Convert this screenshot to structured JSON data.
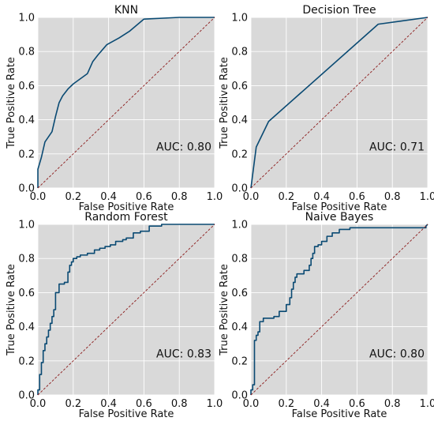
{
  "chart_data": [
    {
      "type": "line",
      "title": "KNN",
      "xlabel": "False Positive Rate",
      "ylabel": "True Positive Rate",
      "xlim": [
        0,
        1
      ],
      "ylim": [
        0,
        1
      ],
      "xticks": [
        "0.0",
        "0.2",
        "0.4",
        "0.6",
        "0.8",
        "1.0"
      ],
      "yticks": [
        "0.0",
        "0.2",
        "0.4",
        "0.6",
        "0.8",
        "1.0"
      ],
      "grid": true,
      "annotation": "AUC: 0.80",
      "series": [
        {
          "role": "roc",
          "color": "#0a4a73",
          "x": [
            0,
            0,
            0.02,
            0.04,
            0.06,
            0.06,
            0.08,
            0.1,
            0.12,
            0.14,
            0.17,
            0.2,
            0.24,
            0.28,
            0.31,
            0.34,
            0.39,
            0.46,
            0.52,
            0.6,
            0.8,
            1.0
          ],
          "y": [
            0,
            0.11,
            0.18,
            0.27,
            0.3,
            0.3,
            0.33,
            0.42,
            0.5,
            0.54,
            0.58,
            0.61,
            0.64,
            0.67,
            0.74,
            0.78,
            0.84,
            0.88,
            0.92,
            0.99,
            1.0,
            1.0
          ]
        },
        {
          "role": "chance",
          "color": "#8b1a1a",
          "dashed": true,
          "x": [
            0,
            1
          ],
          "y": [
            0,
            1
          ]
        }
      ]
    },
    {
      "type": "line",
      "title": "Decision Tree",
      "xlabel": "False Positive Rate",
      "ylabel": "True Positive Rate",
      "xlim": [
        0,
        1
      ],
      "ylim": [
        0,
        1
      ],
      "xticks": [
        "0.0",
        "0.2",
        "0.4",
        "0.6",
        "0.8",
        "1.0"
      ],
      "yticks": [
        "0.0",
        "0.2",
        "0.4",
        "0.6",
        "0.8",
        "1.0"
      ],
      "grid": true,
      "annotation": "AUC: 0.71",
      "series": [
        {
          "role": "roc",
          "color": "#0a4a73",
          "x": [
            0,
            0.03,
            0.1,
            0.72,
            1.0
          ],
          "y": [
            0,
            0.24,
            0.39,
            0.96,
            1.0
          ]
        },
        {
          "role": "chance",
          "color": "#8b1a1a",
          "dashed": true,
          "x": [
            0,
            1
          ],
          "y": [
            0,
            1
          ]
        }
      ]
    },
    {
      "type": "line",
      "title": "Random Forest",
      "xlabel": "False Positive Rate",
      "ylabel": "True Positive Rate",
      "xlim": [
        0,
        1
      ],
      "ylim": [
        0,
        1
      ],
      "xticks": [
        "0.0",
        "0.2",
        "0.4",
        "0.6",
        "0.8",
        "1.0"
      ],
      "yticks": [
        "0.0",
        "0.2",
        "0.4",
        "0.6",
        "0.8",
        "1.0"
      ],
      "grid": true,
      "annotation": "AUC: 0.83",
      "series": [
        {
          "role": "roc",
          "color": "#0a4a73",
          "x": [
            0,
            0,
            0.01,
            0.01,
            0.02,
            0.02,
            0.03,
            0.03,
            0.04,
            0.04,
            0.05,
            0.05,
            0.06,
            0.06,
            0.07,
            0.07,
            0.08,
            0.08,
            0.09,
            0.09,
            0.1,
            0.1,
            0.12,
            0.12,
            0.15,
            0.15,
            0.17,
            0.17,
            0.18,
            0.18,
            0.19,
            0.19,
            0.2,
            0.2,
            0.22,
            0.22,
            0.24,
            0.24,
            0.28,
            0.28,
            0.32,
            0.32,
            0.35,
            0.35,
            0.38,
            0.38,
            0.41,
            0.41,
            0.44,
            0.44,
            0.48,
            0.48,
            0.5,
            0.5,
            0.54,
            0.54,
            0.58,
            0.58,
            0.63,
            0.63,
            0.7,
            0.7,
            1.0
          ],
          "y": [
            0,
            0.03,
            0.03,
            0.12,
            0.12,
            0.19,
            0.19,
            0.26,
            0.26,
            0.3,
            0.3,
            0.34,
            0.34,
            0.38,
            0.38,
            0.42,
            0.42,
            0.46,
            0.46,
            0.5,
            0.5,
            0.6,
            0.6,
            0.65,
            0.65,
            0.66,
            0.66,
            0.72,
            0.72,
            0.76,
            0.76,
            0.78,
            0.78,
            0.8,
            0.8,
            0.81,
            0.81,
            0.82,
            0.82,
            0.83,
            0.83,
            0.85,
            0.85,
            0.86,
            0.86,
            0.87,
            0.87,
            0.88,
            0.88,
            0.9,
            0.9,
            0.91,
            0.91,
            0.92,
            0.92,
            0.95,
            0.95,
            0.96,
            0.96,
            0.99,
            0.99,
            1.0,
            1.0
          ]
        },
        {
          "role": "chance",
          "color": "#8b1a1a",
          "dashed": true,
          "x": [
            0,
            1
          ],
          "y": [
            0,
            1
          ]
        }
      ]
    },
    {
      "type": "line",
      "title": "Naive Bayes",
      "xlabel": "False Positive Rate",
      "ylabel": "True Positive Rate",
      "xlim": [
        0,
        1
      ],
      "ylim": [
        0,
        1
      ],
      "xticks": [
        "0.0",
        "0.2",
        "0.4",
        "0.6",
        "0.8",
        "1.0"
      ],
      "yticks": [
        "0.0",
        "0.2",
        "0.4",
        "0.6",
        "0.8",
        "1.0"
      ],
      "grid": true,
      "annotation": "AUC: 0.80",
      "series": [
        {
          "role": "roc",
          "color": "#0a4a73",
          "x": [
            0,
            0,
            0.01,
            0.01,
            0.02,
            0.02,
            0.03,
            0.03,
            0.04,
            0.04,
            0.05,
            0.05,
            0.07,
            0.07,
            0.13,
            0.13,
            0.16,
            0.16,
            0.2,
            0.2,
            0.22,
            0.22,
            0.23,
            0.23,
            0.24,
            0.24,
            0.25,
            0.25,
            0.26,
            0.26,
            0.3,
            0.3,
            0.33,
            0.33,
            0.34,
            0.34,
            0.35,
            0.35,
            0.36,
            0.36,
            0.38,
            0.38,
            0.4,
            0.4,
            0.43,
            0.43,
            0.46,
            0.46,
            0.5,
            0.5,
            0.56,
            0.56,
            0.99,
            0.99,
            1.0
          ],
          "y": [
            0,
            0.03,
            0.03,
            0.06,
            0.06,
            0.32,
            0.32,
            0.35,
            0.35,
            0.37,
            0.37,
            0.43,
            0.43,
            0.45,
            0.45,
            0.46,
            0.46,
            0.49,
            0.49,
            0.53,
            0.53,
            0.57,
            0.57,
            0.62,
            0.62,
            0.66,
            0.66,
            0.69,
            0.69,
            0.71,
            0.71,
            0.73,
            0.73,
            0.76,
            0.76,
            0.8,
            0.8,
            0.83,
            0.83,
            0.87,
            0.87,
            0.88,
            0.88,
            0.9,
            0.9,
            0.93,
            0.93,
            0.95,
            0.95,
            0.97,
            0.97,
            0.98,
            0.98,
            0.99,
            1.0
          ]
        },
        {
          "role": "chance",
          "color": "#8b1a1a",
          "dashed": true,
          "x": [
            0,
            1
          ],
          "y": [
            0,
            1
          ]
        }
      ]
    }
  ]
}
